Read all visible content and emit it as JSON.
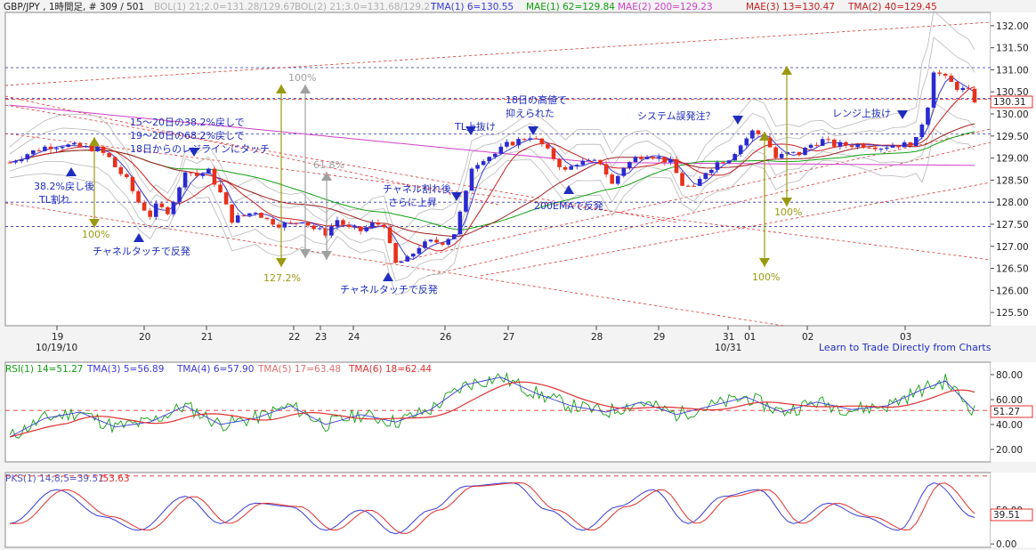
{
  "colors": {
    "up_candle": "#2a2ad0",
    "down_candle": "#e8301a",
    "tma1": "#3b3bd6",
    "mae1": "#11a011",
    "mae2": "#d040c8",
    "mae3": "#c81e1e",
    "tma2": "#a02020",
    "bollinger": "#b8b8b8",
    "trend_red": "#e03030",
    "level_blue": "#3030b0",
    "arrow_blue": "#1f2dbf",
    "fib_olive": "#9a9a10",
    "fib_gray": "#a0a0a0",
    "rsi": "#11a011",
    "rsi_tma3": "#3b3bd6",
    "rsi_tma4": "#3b3bd6",
    "rsi_tma5": "#e07070",
    "rsi_tma6": "#e03030",
    "pks_blue": "#3b3bd6",
    "pks_red": "#e03030"
  },
  "header": {
    "symbol_info": "GBP/JPY , 1時間足, # 309 / 501",
    "bol1": "BOL(1) 21;2.0=131.28/129.67",
    "bol2": "BOL(2) 21;3.0=131.68/129.27",
    "tma1": "TMA(1) 6=130.55",
    "mae1": "MAE(1) 62=129.84",
    "mae2": "MAE(2) 200=129.23",
    "mae3": "MAE(3) 13=130.47",
    "tma2": "TMA(2) 40=129.45"
  },
  "rsi_header": {
    "rsi1": "RSI(1) 14=51.27",
    "tma3": "TMA(3) 5=56.89",
    "tma4": "TMA(4) 6=57.90",
    "tma5": "TMA(5) 17=63.48",
    "tma6": "TMA(6) 18=62.44"
  },
  "pks_header": {
    "label": "PKS(1) 14;8;5=39.51",
    "label2": "/53.63"
  },
  "footer_link": "Learn to Trade Directly from Charts",
  "price_axis": {
    "ticks": [
      "132.00",
      "131.50",
      "131.00",
      "130.50",
      "130.00",
      "129.50",
      "129.00",
      "128.50",
      "128.00",
      "127.50",
      "127.00",
      "126.50",
      "126.00",
      "125.50"
    ],
    "current": "130.31"
  },
  "rsi_axis": {
    "ticks": [
      "80.00",
      "60.00",
      "40.00",
      "20.00"
    ],
    "current": "51.27"
  },
  "pks_axis": {
    "ticks": [
      "50.00",
      "0.00"
    ],
    "current": "39.51"
  },
  "time_axis": {
    "labels": [
      "19",
      "20",
      "21",
      "22",
      "23",
      "24",
      "26",
      "27",
      "28",
      "29",
      "31",
      "01",
      "02",
      "03"
    ],
    "date_labels": [
      "10/19/10",
      "10/31"
    ]
  },
  "annotations": {
    "a1": "15～20日の38.2%戻しで",
    "a2": "19～20日の68.2%戻しで",
    "a3": "18日からのレジラインにタッチ",
    "a4": "38.2%戻し後",
    "a5": "TL割れ",
    "a6": "チャネルタッチで反発",
    "a7": "チャネル割れ後",
    "a8": "さらに上昇",
    "a9": "チャネルタッチで反発",
    "a10": "TL上抜け",
    "a11": "18日の高値で",
    "a12": "抑えられた",
    "a13": "200EMAで反発",
    "a14": "システム誤発注？",
    "a15": "レンジ上抜け",
    "p100a": "100%",
    "p100b": "100%",
    "p127": "127.2%",
    "p618": "61.8%",
    "p100c": "100%",
    "p100d": "100%"
  },
  "chart_data": {
    "type": "candlestick",
    "symbol": "GBP/JPY",
    "timeframe": "1時間足",
    "ylim": [
      125.2,
      132.3
    ],
    "price_path": [
      [
        0,
        128.9
      ],
      [
        3,
        129.1
      ],
      [
        6,
        129.25
      ],
      [
        9,
        129.3
      ],
      [
        12,
        129.25
      ],
      [
        15,
        129.2
      ],
      [
        17,
        129.0
      ],
      [
        18,
        128.8
      ],
      [
        20,
        128.5
      ],
      [
        22,
        128.0
      ],
      [
        24,
        127.7
      ],
      [
        25,
        127.9
      ],
      [
        27,
        127.8
      ],
      [
        29,
        128.3
      ],
      [
        30,
        128.75
      ],
      [
        32,
        128.6
      ],
      [
        34,
        128.7
      ],
      [
        36,
        128.2
      ],
      [
        38,
        127.6
      ],
      [
        40,
        127.7
      ],
      [
        42,
        127.8
      ],
      [
        44,
        127.6
      ],
      [
        46,
        127.5
      ],
      [
        48,
        127.5
      ],
      [
        50,
        127.6
      ],
      [
        52,
        127.4
      ],
      [
        54,
        127.3
      ],
      [
        56,
        127.6
      ],
      [
        58,
        127.4
      ],
      [
        60,
        127.35
      ],
      [
        62,
        127.5
      ],
      [
        64,
        127.5
      ],
      [
        65,
        127.0
      ],
      [
        66,
        126.6
      ],
      [
        68,
        126.7
      ],
      [
        70,
        127.0
      ],
      [
        72,
        127.1
      ],
      [
        74,
        127.1
      ],
      [
        76,
        127.3
      ],
      [
        78,
        128.2
      ],
      [
        79,
        128.8
      ],
      [
        81,
        129.0
      ],
      [
        83,
        129.1
      ],
      [
        85,
        129.3
      ],
      [
        87,
        129.4
      ],
      [
        89,
        129.5
      ],
      [
        91,
        129.3
      ],
      [
        93,
        129.0
      ],
      [
        95,
        128.7
      ],
      [
        97,
        128.9
      ],
      [
        99,
        128.9
      ],
      [
        101,
        128.9
      ],
      [
        103,
        128.4
      ],
      [
        105,
        128.8
      ],
      [
        107,
        129.0
      ],
      [
        109,
        129.1
      ],
      [
        111,
        129.0
      ],
      [
        113,
        128.9
      ],
      [
        115,
        128.4
      ],
      [
        117,
        128.3
      ],
      [
        119,
        128.7
      ],
      [
        121,
        128.9
      ],
      [
        123,
        129.0
      ],
      [
        125,
        129.3
      ],
      [
        127,
        129.6
      ],
      [
        129,
        129.5
      ],
      [
        131,
        129.0
      ],
      [
        133,
        129.1
      ],
      [
        135,
        129.1
      ],
      [
        137,
        129.3
      ],
      [
        139,
        129.4
      ],
      [
        141,
        129.3
      ],
      [
        143,
        129.3
      ],
      [
        145,
        129.3
      ],
      [
        147,
        129.3
      ],
      [
        149,
        129.25
      ],
      [
        151,
        129.3
      ],
      [
        153,
        129.3
      ],
      [
        155,
        129.4
      ],
      [
        157,
        130.2
      ],
      [
        158,
        131.0
      ],
      [
        160,
        130.8
      ],
      [
        162,
        130.6
      ],
      [
        164,
        130.5
      ],
      [
        165,
        130.31
      ]
    ],
    "series": [
      {
        "name": "TMA(1) 6",
        "last": 130.55
      },
      {
        "name": "MAE(1) 62",
        "last": 129.84
      },
      {
        "name": "MAE(2) 200",
        "last": 129.23
      },
      {
        "name": "MAE(3) 13",
        "last": 130.47
      },
      {
        "name": "TMA(2) 40",
        "last": 129.45
      },
      {
        "name": "BOL(1) 21;2.0",
        "upper": 131.28,
        "lower": 129.67
      },
      {
        "name": "BOL(2) 21;3.0",
        "upper": 131.68,
        "lower": 129.27
      }
    ],
    "horizontal_levels": [
      131.05,
      130.35,
      129.55,
      128.0,
      127.45
    ],
    "rsi": {
      "ylim": [
        10,
        90
      ],
      "last": 51.27,
      "level": 51.27,
      "path": [
        [
          0,
          30
        ],
        [
          6,
          45
        ],
        [
          12,
          50
        ],
        [
          18,
          38
        ],
        [
          24,
          42
        ],
        [
          30,
          55
        ],
        [
          36,
          40
        ],
        [
          42,
          45
        ],
        [
          48,
          55
        ],
        [
          54,
          40
        ],
        [
          60,
          48
        ],
        [
          66,
          42
        ],
        [
          72,
          52
        ],
        [
          78,
          72
        ],
        [
          84,
          78
        ],
        [
          90,
          65
        ],
        [
          96,
          55
        ],
        [
          102,
          50
        ],
        [
          108,
          58
        ],
        [
          114,
          48
        ],
        [
          120,
          55
        ],
        [
          126,
          62
        ],
        [
          132,
          50
        ],
        [
          138,
          58
        ],
        [
          144,
          52
        ],
        [
          150,
          55
        ],
        [
          156,
          68
        ],
        [
          160,
          75
        ],
        [
          165,
          51
        ]
      ]
    },
    "pks": {
      "ylim": [
        -5,
        105
      ],
      "last": 39.51,
      "last2": 53.63,
      "path": [
        [
          0,
          30
        ],
        [
          8,
          80
        ],
        [
          16,
          40
        ],
        [
          22,
          20
        ],
        [
          30,
          70
        ],
        [
          36,
          30
        ],
        [
          42,
          60
        ],
        [
          48,
          55
        ],
        [
          54,
          20
        ],
        [
          60,
          50
        ],
        [
          66,
          15
        ],
        [
          72,
          50
        ],
        [
          78,
          85
        ],
        [
          86,
          90
        ],
        [
          92,
          50
        ],
        [
          98,
          20
        ],
        [
          104,
          55
        ],
        [
          110,
          80
        ],
        [
          116,
          30
        ],
        [
          122,
          70
        ],
        [
          128,
          80
        ],
        [
          134,
          30
        ],
        [
          140,
          60
        ],
        [
          146,
          40
        ],
        [
          152,
          20
        ],
        [
          158,
          90
        ],
        [
          165,
          39
        ]
      ]
    }
  }
}
